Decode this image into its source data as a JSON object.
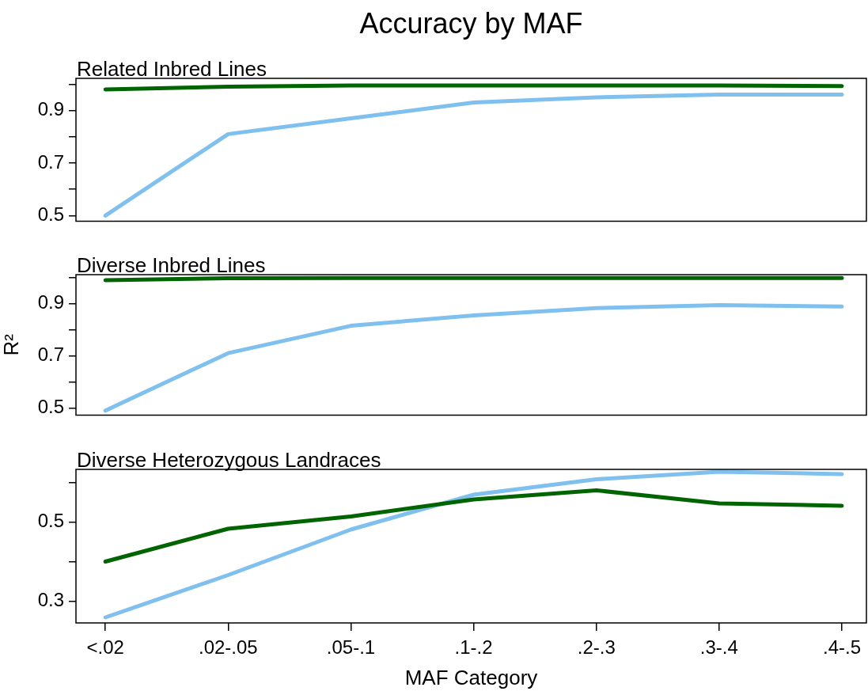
{
  "chart_data": [
    {
      "type": "line",
      "title": "Accuracy by MAF",
      "subtitle": "Related Inbred Lines",
      "series": [
        {
          "color": "#006400",
          "values": [
            0.98,
            0.99,
            0.995,
            0.995,
            0.995,
            0.995,
            0.993
          ]
        },
        {
          "color": "#80c0ee",
          "values": [
            0.5,
            0.81,
            0.87,
            0.93,
            0.95,
            0.96,
            0.96
          ]
        }
      ],
      "ylim": [
        0.478,
        1.022
      ],
      "yticks": [
        0.5,
        {
          "value": 0.6,
          "label": null
        },
        0.7,
        {
          "value": 0.8,
          "label": null
        },
        0.9,
        {
          "value": 1.0,
          "label": null
        }
      ],
      "tick_labels": "y"
    },
    {
      "type": "line",
      "subtitle": "Diverse Inbred Lines",
      "ylabel": "R²",
      "series": [
        {
          "color": "#006400",
          "values": [
            0.99,
            0.997,
            0.998,
            0.998,
            0.998,
            0.998,
            0.998
          ]
        },
        {
          "color": "#80c0ee",
          "values": [
            0.49,
            0.71,
            0.815,
            0.855,
            0.883,
            0.894,
            0.889
          ]
        }
      ],
      "ylim": [
        0.472,
        1.011
      ],
      "yticks": [
        0.5,
        {
          "value": 0.6,
          "label": null
        },
        0.7,
        {
          "value": 0.8,
          "label": null
        },
        0.9,
        {
          "value": 1.0,
          "label": null
        }
      ],
      "tick_labels": "y"
    },
    {
      "type": "line",
      "subtitle": "Diverse Heterozygous Landraces",
      "xlabel": "MAF Category",
      "categories": [
        "<.02",
        ".02-.05",
        ".05-.1",
        ".1-.2",
        ".2-.3",
        ".3-.4",
        ".4-.5"
      ],
      "series": [
        {
          "color": "#006400",
          "values": [
            0.4,
            0.483,
            0.514,
            0.557,
            0.58,
            0.547,
            0.541
          ]
        },
        {
          "color": "#80c0ee",
          "values": [
            0.259,
            0.366,
            0.481,
            0.569,
            0.608,
            0.627,
            0.621
          ]
        }
      ],
      "ylim": [
        0.245,
        0.633
      ],
      "yticks": [
        0.3,
        {
          "value": 0.4,
          "label": null
        },
        0.5,
        {
          "value": 0.6,
          "label": null
        }
      ]
    }
  ]
}
